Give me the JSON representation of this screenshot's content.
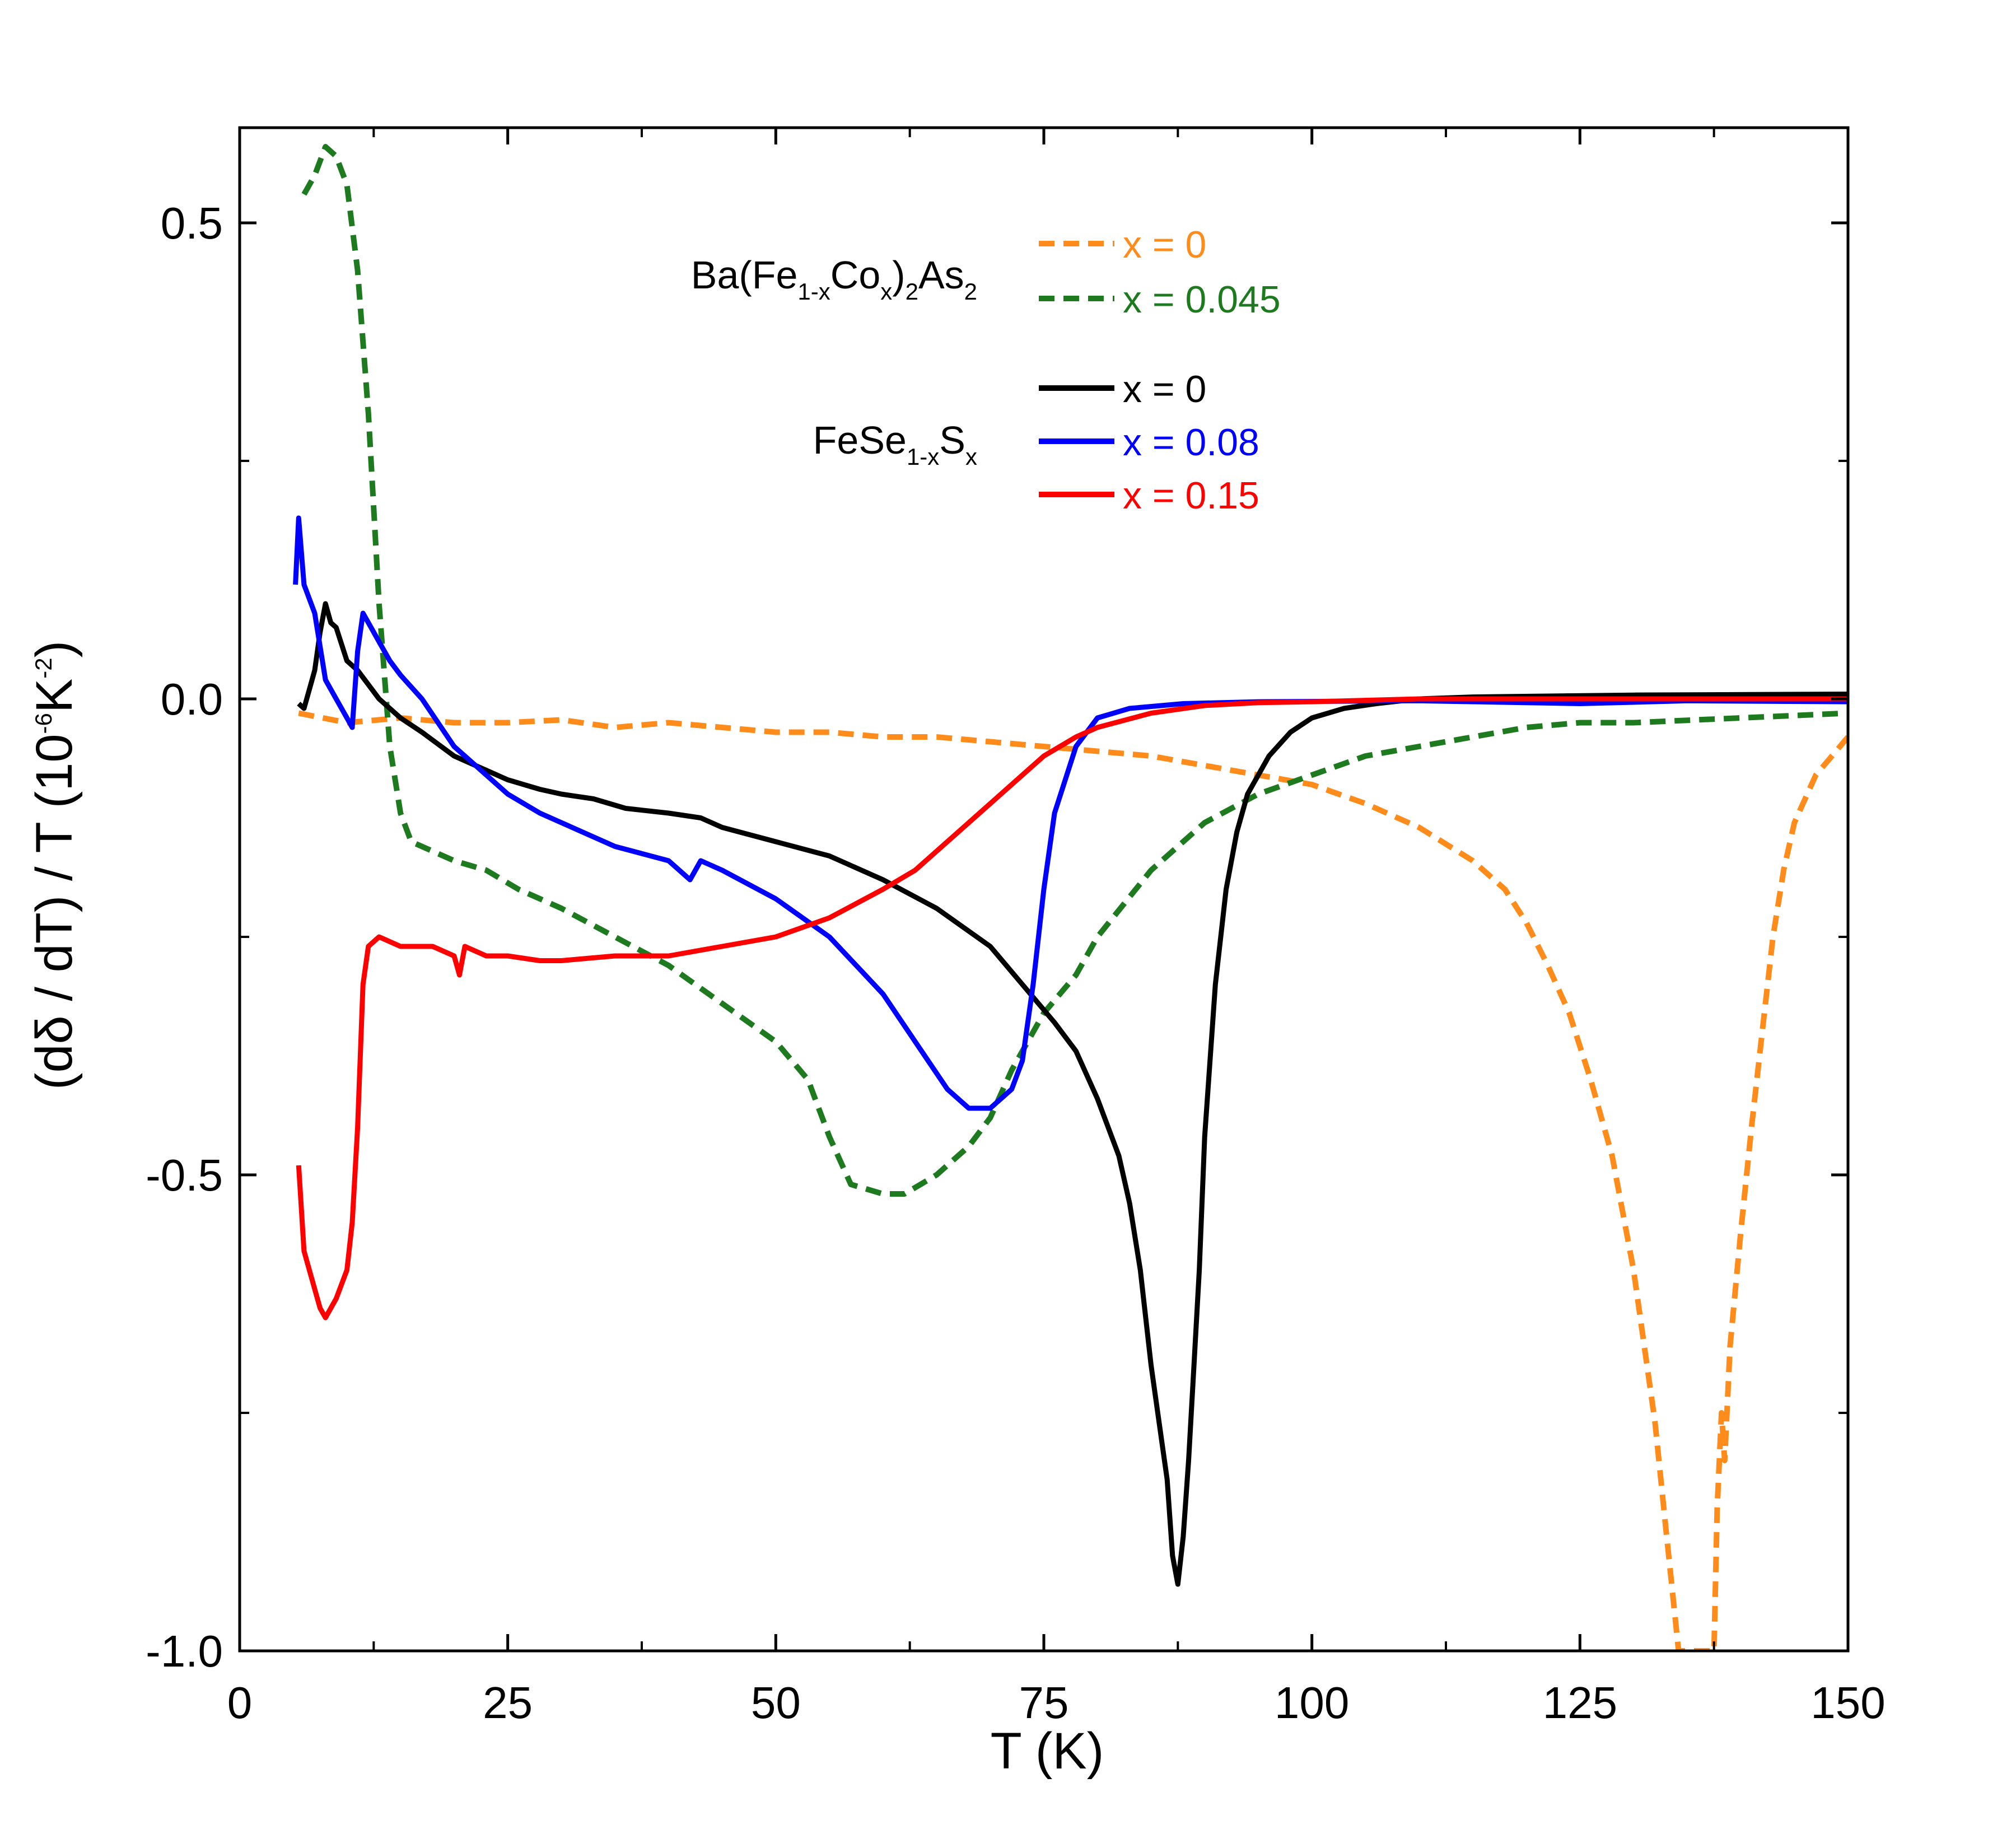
{
  "chart_data": {
    "type": "line",
    "title": "",
    "xlabel": "T (K)",
    "ylabel": {
      "prefix": "(dδ / dT) / T (10",
      "exp1": "-6",
      "mid": "K",
      "exp2": "-2",
      "suffix": ")"
    },
    "xlim": [
      0,
      150
    ],
    "ylim": [
      -1.0,
      0.6
    ],
    "xticks": [
      0,
      25,
      50,
      75,
      100,
      125,
      150
    ],
    "xtick_labels": [
      "0",
      "25",
      "50",
      "75",
      "100",
      "125",
      "150"
    ],
    "yticks": [
      -1.0,
      -0.5,
      0.0,
      0.5
    ],
    "ytick_labels": [
      "-1.0",
      "-0.5",
      "0.0",
      "0.5"
    ],
    "legend": {
      "placement": "top-center",
      "groups": [
        {
          "title": {
            "parts": [
              {
                "t": "Ba(Fe"
              },
              {
                "t": "1-x",
                "sub": true
              },
              {
                "t": "Co"
              },
              {
                "t": "x",
                "sub": true
              },
              {
                "t": ")"
              },
              {
                "t": "2",
                "sub": true
              },
              {
                "t": "As"
              },
              {
                "t": "2",
                "sub": true
              }
            ]
          },
          "entries": [
            "x = 0",
            "x = 0.045"
          ]
        },
        {
          "title": {
            "parts": [
              {
                "t": "FeSe"
              },
              {
                "t": "1-x",
                "sub": true
              },
              {
                "t": "S"
              },
              {
                "t": "x",
                "sub": true
              }
            ]
          },
          "entries": [
            "x = 0",
            "x = 0.08",
            "x = 0.15"
          ]
        }
      ]
    },
    "series": [
      {
        "name": "Ba(Fe1-xCox)2As2 x = 0",
        "color": "#FF8C1A",
        "dashed": true,
        "points": [
          [
            5.5,
            -0.015
          ],
          [
            10,
            -0.025
          ],
          [
            15,
            -0.02
          ],
          [
            20,
            -0.025
          ],
          [
            25,
            -0.025
          ],
          [
            30,
            -0.022
          ],
          [
            35,
            -0.03
          ],
          [
            40,
            -0.025
          ],
          [
            45,
            -0.03
          ],
          [
            50,
            -0.035
          ],
          [
            55,
            -0.035
          ],
          [
            60,
            -0.04
          ],
          [
            65,
            -0.04
          ],
          [
            70,
            -0.045
          ],
          [
            75,
            -0.05
          ],
          [
            80,
            -0.055
          ],
          [
            85,
            -0.06
          ],
          [
            90,
            -0.07
          ],
          [
            95,
            -0.08
          ],
          [
            100,
            -0.09
          ],
          [
            105,
            -0.11
          ],
          [
            110,
            -0.135
          ],
          [
            115,
            -0.17
          ],
          [
            118,
            -0.2
          ],
          [
            120,
            -0.235
          ],
          [
            122,
            -0.28
          ],
          [
            124,
            -0.33
          ],
          [
            126,
            -0.4
          ],
          [
            128,
            -0.48
          ],
          [
            130,
            -0.6
          ],
          [
            132,
            -0.76
          ],
          [
            133,
            -0.87
          ],
          [
            134.2,
            -1.0
          ],
          [
            137.5,
            -1.0
          ],
          [
            137.8,
            -0.85
          ],
          [
            138.2,
            -0.75
          ],
          [
            138.5,
            -0.8
          ],
          [
            139,
            -0.68
          ],
          [
            140,
            -0.56
          ],
          [
            141,
            -0.45
          ],
          [
            142,
            -0.35
          ],
          [
            143,
            -0.25
          ],
          [
            144,
            -0.18
          ],
          [
            145,
            -0.13
          ],
          [
            147,
            -0.08
          ],
          [
            150,
            -0.04
          ]
        ]
      },
      {
        "name": "Ba(Fe1-xCox)2As2 x = 0.045",
        "color": "#1E7A1E",
        "dashed": true,
        "points": [
          [
            6,
            0.53
          ],
          [
            7,
            0.55
          ],
          [
            8,
            0.58
          ],
          [
            9,
            0.57
          ],
          [
            10,
            0.54
          ],
          [
            11,
            0.45
          ],
          [
            12,
            0.3
          ],
          [
            13,
            0.1
          ],
          [
            14,
            -0.05
          ],
          [
            15,
            -0.12
          ],
          [
            16,
            -0.15
          ],
          [
            18,
            -0.16
          ],
          [
            20,
            -0.17
          ],
          [
            23,
            -0.18
          ],
          [
            26,
            -0.2
          ],
          [
            30,
            -0.22
          ],
          [
            35,
            -0.25
          ],
          [
            40,
            -0.28
          ],
          [
            45,
            -0.32
          ],
          [
            50,
            -0.36
          ],
          [
            53,
            -0.4
          ],
          [
            55,
            -0.46
          ],
          [
            57,
            -0.51
          ],
          [
            60,
            -0.52
          ],
          [
            62,
            -0.52
          ],
          [
            65,
            -0.5
          ],
          [
            67,
            -0.48
          ],
          [
            68,
            -0.47
          ],
          [
            70,
            -0.44
          ],
          [
            72,
            -0.39
          ],
          [
            75,
            -0.33
          ],
          [
            78,
            -0.29
          ],
          [
            80,
            -0.25
          ],
          [
            85,
            -0.18
          ],
          [
            90,
            -0.13
          ],
          [
            95,
            -0.1
          ],
          [
            100,
            -0.08
          ],
          [
            105,
            -0.06
          ],
          [
            110,
            -0.05
          ],
          [
            115,
            -0.04
          ],
          [
            120,
            -0.03
          ],
          [
            125,
            -0.025
          ],
          [
            130,
            -0.025
          ],
          [
            140,
            -0.02
          ],
          [
            150,
            -0.015
          ]
        ]
      },
      {
        "name": "FeSe1-xSx x = 0",
        "color": "#000000",
        "dashed": false,
        "points": [
          [
            5.5,
            -0.005
          ],
          [
            6,
            -0.01
          ],
          [
            6.5,
            0.01
          ],
          [
            7,
            0.03
          ],
          [
            7.5,
            0.07
          ],
          [
            8,
            0.1
          ],
          [
            8.5,
            0.08
          ],
          [
            9,
            0.075
          ],
          [
            10,
            0.04
          ],
          [
            11,
            0.03
          ],
          [
            12,
            0.015
          ],
          [
            13,
            0.0
          ],
          [
            15,
            -0.02
          ],
          [
            17,
            -0.035
          ],
          [
            20,
            -0.06
          ],
          [
            23,
            -0.075
          ],
          [
            25,
            -0.085
          ],
          [
            28,
            -0.095
          ],
          [
            30,
            -0.1
          ],
          [
            33,
            -0.105
          ],
          [
            36,
            -0.115
          ],
          [
            40,
            -0.12
          ],
          [
            43,
            -0.125
          ],
          [
            45,
            -0.135
          ],
          [
            50,
            -0.15
          ],
          [
            55,
            -0.165
          ],
          [
            60,
            -0.19
          ],
          [
            65,
            -0.22
          ],
          [
            70,
            -0.26
          ],
          [
            73,
            -0.3
          ],
          [
            76,
            -0.34
          ],
          [
            78,
            -0.37
          ],
          [
            80,
            -0.42
          ],
          [
            82,
            -0.48
          ],
          [
            83,
            -0.53
          ],
          [
            84,
            -0.6
          ],
          [
            85,
            -0.7
          ],
          [
            86,
            -0.78
          ],
          [
            86.5,
            -0.82
          ],
          [
            87,
            -0.9
          ],
          [
            87.5,
            -0.93
          ],
          [
            88,
            -0.88
          ],
          [
            88.5,
            -0.8
          ],
          [
            89,
            -0.7
          ],
          [
            89.5,
            -0.6
          ],
          [
            90,
            -0.46
          ],
          [
            91,
            -0.3
          ],
          [
            92,
            -0.2
          ],
          [
            93,
            -0.14
          ],
          [
            94,
            -0.1
          ],
          [
            96,
            -0.06
          ],
          [
            98,
            -0.035
          ],
          [
            100,
            -0.02
          ],
          [
            103,
            -0.01
          ],
          [
            106,
            -0.005
          ],
          [
            110,
            0.0
          ],
          [
            115,
            0.002
          ],
          [
            130,
            0.004
          ],
          [
            150,
            0.005
          ]
        ]
      },
      {
        "name": "FeSe1-xSx x = 0.08",
        "color": "#0000FF",
        "dashed": false,
        "points": [
          [
            5.2,
            0.12
          ],
          [
            5.5,
            0.19
          ],
          [
            6,
            0.12
          ],
          [
            7,
            0.09
          ],
          [
            8,
            0.02
          ],
          [
            9,
            0.0
          ],
          [
            10,
            -0.02
          ],
          [
            10.5,
            -0.03
          ],
          [
            11,
            0.05
          ],
          [
            11.5,
            0.09
          ],
          [
            12,
            0.08
          ],
          [
            13,
            0.06
          ],
          [
            14,
            0.04
          ],
          [
            15,
            0.025
          ],
          [
            17,
            0.0
          ],
          [
            20,
            -0.05
          ],
          [
            23,
            -0.08
          ],
          [
            25,
            -0.1
          ],
          [
            28,
            -0.12
          ],
          [
            30,
            -0.13
          ],
          [
            35,
            -0.155
          ],
          [
            40,
            -0.17
          ],
          [
            42,
            -0.19
          ],
          [
            43,
            -0.17
          ],
          [
            45,
            -0.18
          ],
          [
            50,
            -0.21
          ],
          [
            55,
            -0.25
          ],
          [
            60,
            -0.31
          ],
          [
            63,
            -0.36
          ],
          [
            66,
            -0.41
          ],
          [
            68,
            -0.43
          ],
          [
            70,
            -0.43
          ],
          [
            72,
            -0.41
          ],
          [
            73,
            -0.38
          ],
          [
            74,
            -0.3
          ],
          [
            75,
            -0.2
          ],
          [
            76,
            -0.12
          ],
          [
            78,
            -0.05
          ],
          [
            80,
            -0.02
          ],
          [
            83,
            -0.01
          ],
          [
            88,
            -0.005
          ],
          [
            95,
            -0.003
          ],
          [
            110,
            -0.002
          ],
          [
            125,
            -0.005
          ],
          [
            135,
            -0.002
          ],
          [
            150,
            -0.003
          ]
        ]
      },
      {
        "name": "FeSe1-xSx x = 0.15",
        "color": "#FF0000",
        "dashed": false,
        "points": [
          [
            5.5,
            -0.49
          ],
          [
            6,
            -0.58
          ],
          [
            7,
            -0.62
          ],
          [
            7.5,
            -0.64
          ],
          [
            8,
            -0.65
          ],
          [
            9,
            -0.63
          ],
          [
            10,
            -0.6
          ],
          [
            10.5,
            -0.55
          ],
          [
            11,
            -0.45
          ],
          [
            11.5,
            -0.3
          ],
          [
            12,
            -0.26
          ],
          [
            13,
            -0.25
          ],
          [
            15,
            -0.26
          ],
          [
            18,
            -0.26
          ],
          [
            20,
            -0.27
          ],
          [
            20.5,
            -0.29
          ],
          [
            21,
            -0.26
          ],
          [
            23,
            -0.27
          ],
          [
            25,
            -0.27
          ],
          [
            28,
            -0.275
          ],
          [
            30,
            -0.275
          ],
          [
            35,
            -0.27
          ],
          [
            40,
            -0.27
          ],
          [
            45,
            -0.26
          ],
          [
            50,
            -0.25
          ],
          [
            55,
            -0.23
          ],
          [
            60,
            -0.2
          ],
          [
            63,
            -0.18
          ],
          [
            65,
            -0.16
          ],
          [
            68,
            -0.13
          ],
          [
            70,
            -0.11
          ],
          [
            73,
            -0.08
          ],
          [
            75,
            -0.06
          ],
          [
            78,
            -0.04
          ],
          [
            80,
            -0.03
          ],
          [
            85,
            -0.015
          ],
          [
            90,
            -0.007
          ],
          [
            95,
            -0.004
          ],
          [
            100,
            -0.003
          ],
          [
            110,
            0.0
          ],
          [
            150,
            0.0
          ]
        ]
      }
    ]
  }
}
